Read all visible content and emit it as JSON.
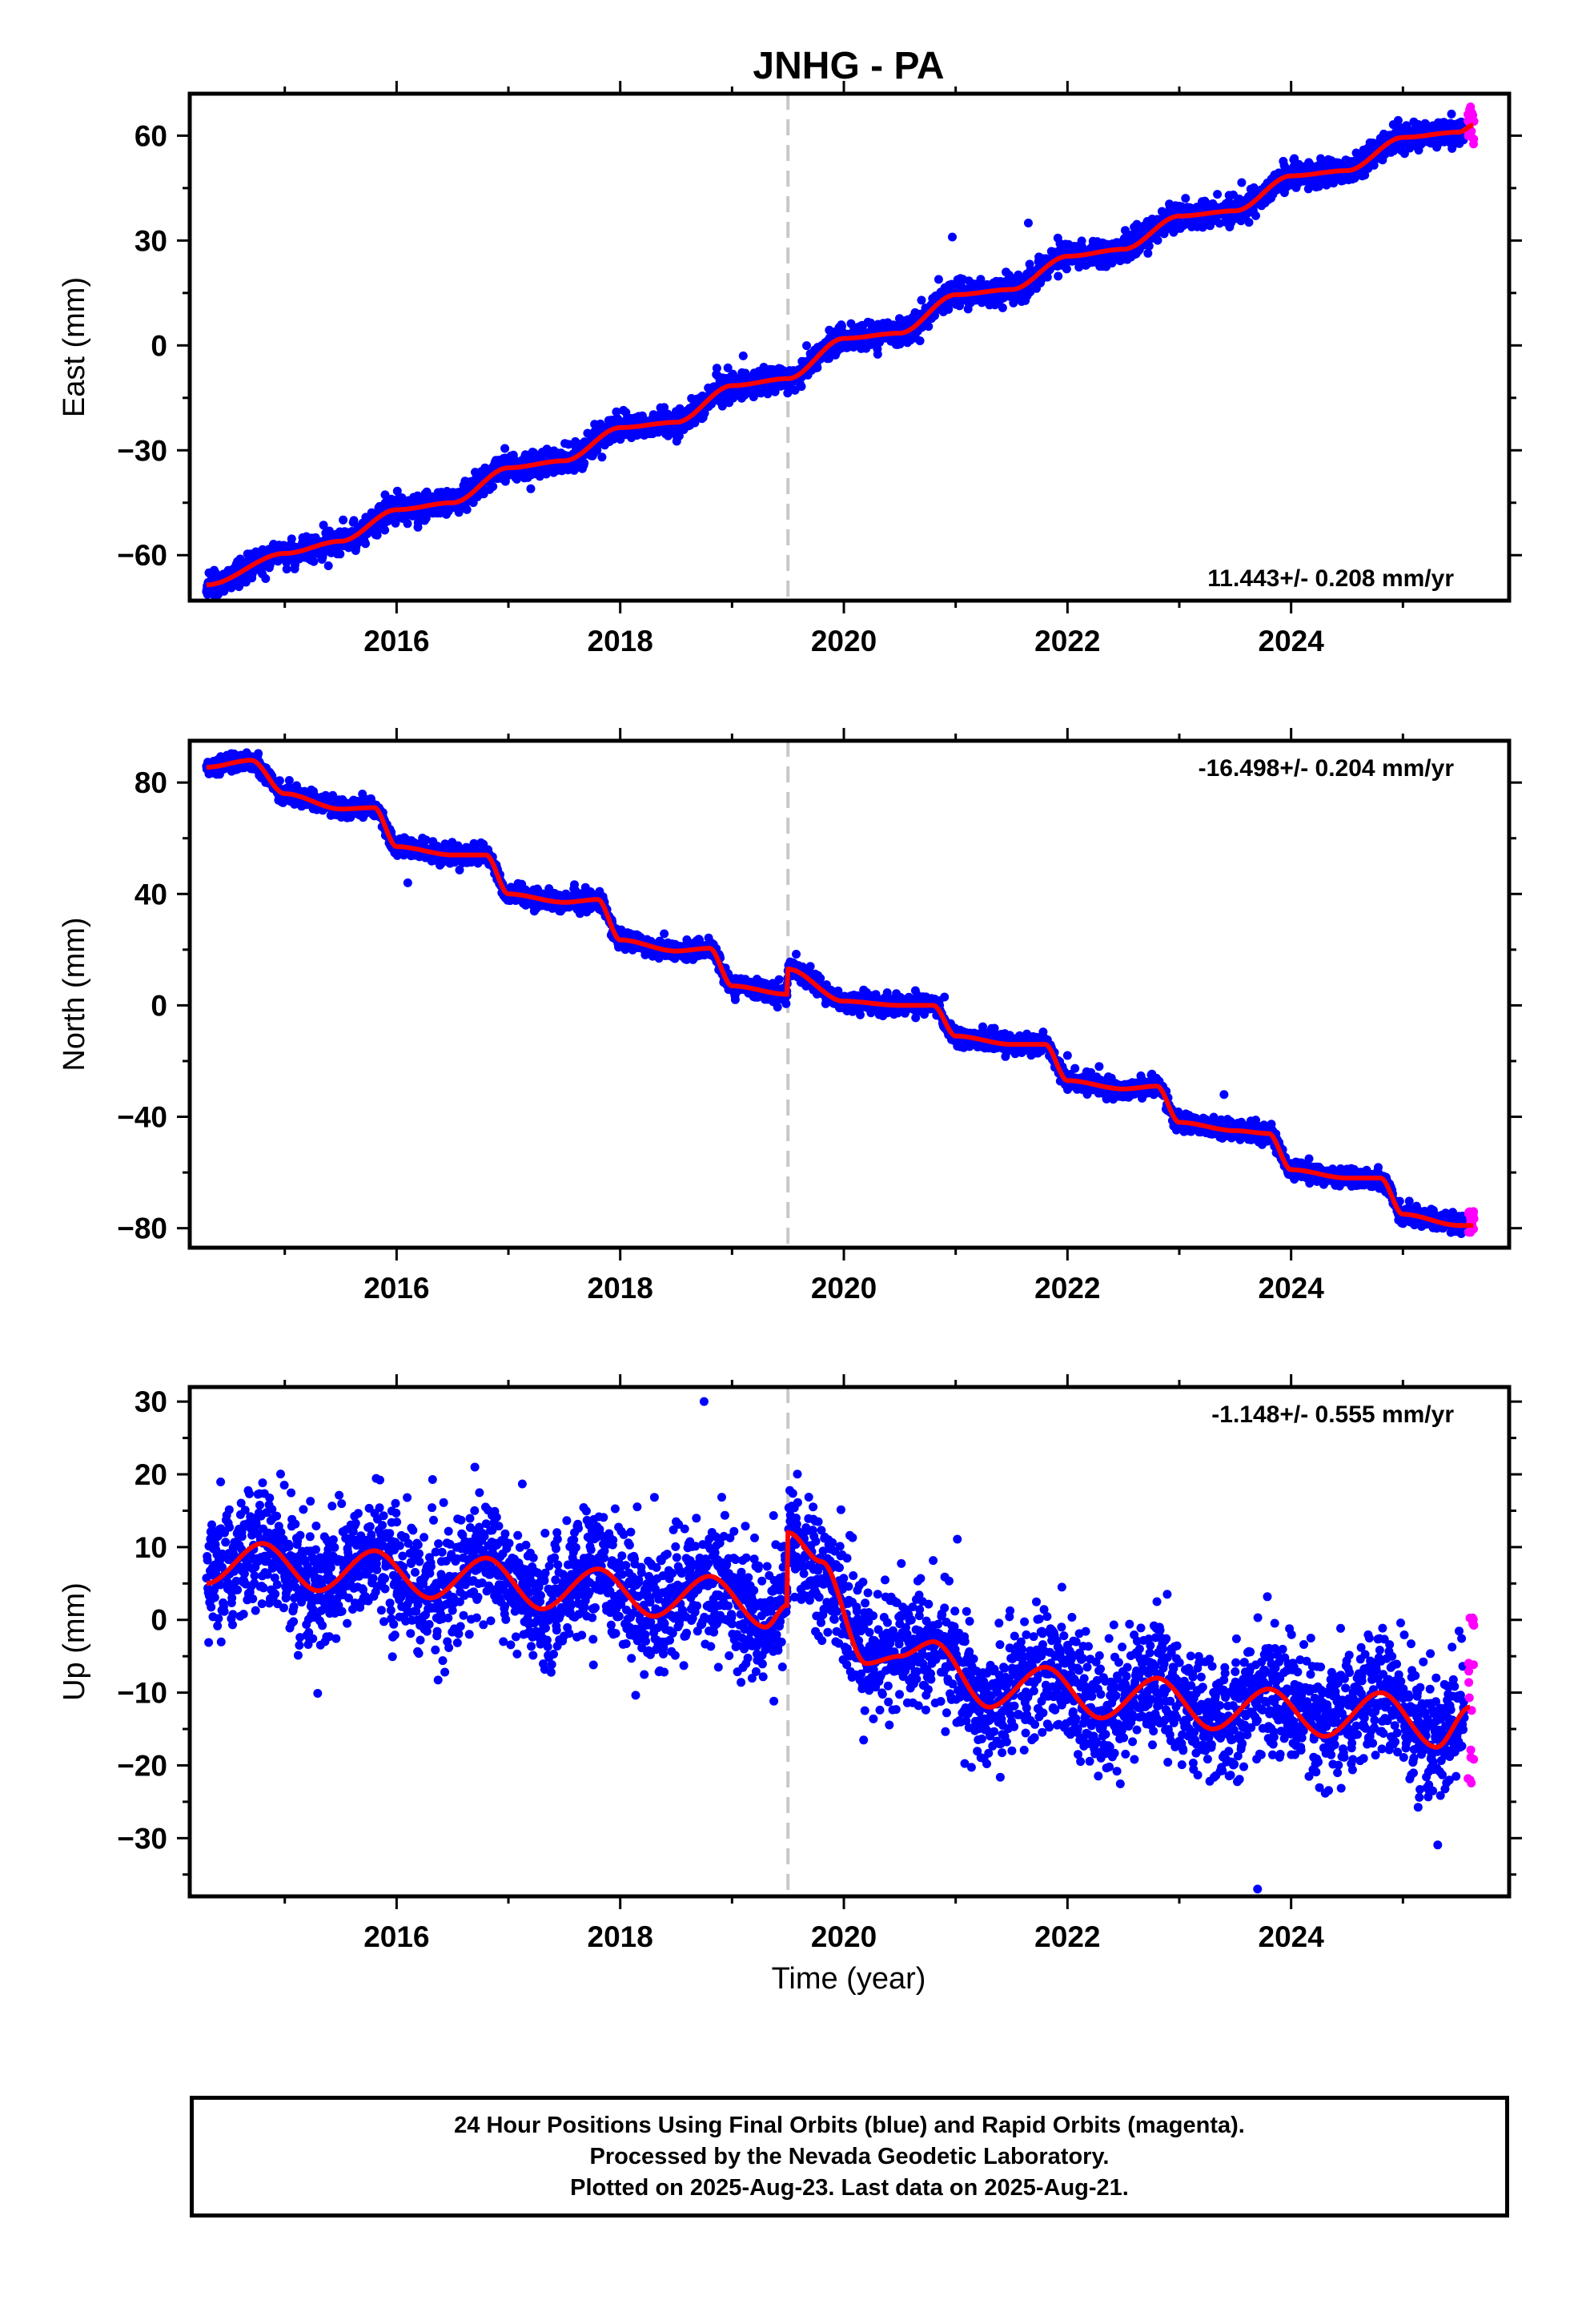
{
  "title": "JNHG - PA",
  "xlabel": "Time (year)",
  "footer": {
    "line1": "24 Hour Positions Using Final Orbits (blue) and Rapid Orbits (magenta).",
    "line2": "Processed by the Nevada Geodetic Laboratory.",
    "line3": "Plotted on 2025-Aug-23. Last data on 2025-Aug-21."
  },
  "colors": {
    "final": "#0000ff",
    "rapid": "#ff00ff",
    "model": "#ff0000",
    "break": "#c8c8c8"
  },
  "chart_data": [
    {
      "type": "scatter",
      "ylabel": "East (mm)",
      "rate": "11.443+/- 0.208 mm/yr",
      "rate_position": "bottom-right",
      "xlim": [
        2014.15,
        2025.95
      ],
      "ylim": [
        -73,
        72
      ],
      "xticks": [
        2016,
        2018,
        2020,
        2022,
        2024
      ],
      "yticks": [
        -60,
        -30,
        0,
        30,
        60
      ],
      "break_x": 2019.5,
      "trend_points": [
        [
          2014.3,
          -68.5
        ],
        [
          2015.0,
          -59.5
        ],
        [
          2015.5,
          -56
        ],
        [
          2016.0,
          -47
        ],
        [
          2016.5,
          -45
        ],
        [
          2017.0,
          -35
        ],
        [
          2017.5,
          -33
        ],
        [
          2018.0,
          -23.5
        ],
        [
          2018.5,
          -22
        ],
        [
          2019.0,
          -11.5
        ],
        [
          2019.5,
          -9.5
        ],
        [
          2020.0,
          2
        ],
        [
          2020.5,
          3.5
        ],
        [
          2021.0,
          14.5
        ],
        [
          2021.5,
          16
        ],
        [
          2022.0,
          25.5
        ],
        [
          2022.5,
          27.5
        ],
        [
          2023.0,
          37
        ],
        [
          2023.5,
          38.5
        ],
        [
          2024.0,
          48.5
        ],
        [
          2024.5,
          50
        ],
        [
          2025.0,
          59.5
        ],
        [
          2025.5,
          61
        ],
        [
          2025.63,
          63
        ]
      ],
      "outliers": [
        [
          2020.97,
          31
        ],
        [
          2021.65,
          35
        ],
        [
          2019.1,
          -3
        ],
        [
          2017.2,
          -41
        ]
      ],
      "rapid_range": [
        57,
        69
      ],
      "scatter_sd": 1.8,
      "annual_amp": 1.5,
      "final_end": 2025.55
    },
    {
      "type": "scatter",
      "ylabel": "North (mm)",
      "rate": "-16.498+/- 0.204 mm/yr",
      "rate_position": "top-right",
      "xlim": [
        2014.15,
        2025.95
      ],
      "ylim": [
        -87,
        95
      ],
      "xticks": [
        2016,
        2018,
        2020,
        2022,
        2024
      ],
      "yticks": [
        -80,
        -40,
        0,
        40,
        80
      ],
      "break_x": 2019.5,
      "trend_points": [
        [
          2014.3,
          85.5
        ],
        [
          2014.7,
          88
        ],
        [
          2015.0,
          76
        ],
        [
          2015.5,
          70.5
        ],
        [
          2015.8,
          71
        ],
        [
          2016.0,
          57
        ],
        [
          2016.5,
          54
        ],
        [
          2016.8,
          54
        ],
        [
          2017.0,
          40
        ],
        [
          2017.5,
          37
        ],
        [
          2017.8,
          38
        ],
        [
          2018.0,
          23.5
        ],
        [
          2018.5,
          19.5
        ],
        [
          2018.8,
          20.5
        ],
        [
          2019.0,
          7
        ],
        [
          2019.49,
          4
        ],
        [
          2019.5,
          13
        ],
        [
          2020.0,
          1.5
        ],
        [
          2020.5,
          0
        ],
        [
          2020.8,
          0
        ],
        [
          2021.0,
          -11
        ],
        [
          2021.5,
          -14
        ],
        [
          2021.8,
          -14
        ],
        [
          2022.0,
          -27
        ],
        [
          2022.5,
          -30
        ],
        [
          2022.8,
          -29
        ],
        [
          2023.0,
          -42
        ],
        [
          2023.5,
          -45
        ],
        [
          2023.8,
          -46
        ],
        [
          2024.0,
          -59
        ],
        [
          2024.5,
          -62
        ],
        [
          2024.8,
          -62
        ],
        [
          2025.0,
          -75
        ],
        [
          2025.5,
          -79
        ],
        [
          2025.63,
          -79
        ]
      ],
      "outliers": [
        [
          2016.1,
          44
        ],
        [
          2020.9,
          3
        ],
        [
          2022.0,
          -18
        ],
        [
          2023.4,
          -32
        ],
        [
          2019.7,
          14
        ]
      ],
      "rapid_range": [
        -82,
        -74
      ],
      "scatter_sd": 1.6,
      "annual_amp": 0,
      "final_end": 2025.55
    },
    {
      "type": "scatter",
      "ylabel": "Up (mm)",
      "rate": "-1.148+/- 0.555 mm/yr",
      "rate_position": "top-right",
      "xlim": [
        2014.15,
        2025.95
      ],
      "ylim": [
        -38,
        32
      ],
      "xticks": [
        2016,
        2018,
        2020,
        2022,
        2024
      ],
      "yticks": [
        -30,
        -20,
        -10,
        0,
        10,
        20,
        30
      ],
      "break_x": 2019.5,
      "trend_points": [
        [
          2014.3,
          5
        ],
        [
          2014.8,
          10.5
        ],
        [
          2015.3,
          4
        ],
        [
          2015.8,
          9.5
        ],
        [
          2016.3,
          3
        ],
        [
          2016.8,
          8.5
        ],
        [
          2017.3,
          1.5
        ],
        [
          2017.8,
          7
        ],
        [
          2018.3,
          0.5
        ],
        [
          2018.8,
          6
        ],
        [
          2019.3,
          -1
        ],
        [
          2019.49,
          2
        ],
        [
          2019.5,
          12
        ],
        [
          2019.8,
          8
        ],
        [
          2020.2,
          -6
        ],
        [
          2020.5,
          -5
        ],
        [
          2020.8,
          -3
        ],
        [
          2021.3,
          -12
        ],
        [
          2021.8,
          -6.5
        ],
        [
          2022.3,
          -13.5
        ],
        [
          2022.8,
          -8
        ],
        [
          2023.3,
          -15
        ],
        [
          2023.8,
          -9.5
        ],
        [
          2024.3,
          -16
        ],
        [
          2024.8,
          -10
        ],
        [
          2025.3,
          -17.5
        ],
        [
          2025.6,
          -12
        ]
      ],
      "outliers": [
        [
          2018.75,
          30
        ],
        [
          2023.7,
          -37
        ],
        [
          2021.95,
          4.5
        ],
        [
          2022.8,
          2.5
        ],
        [
          2016.7,
          21
        ]
      ],
      "rapid_range": [
        -23,
        0.5
      ],
      "scatter_sd": 4.2,
      "annual_amp": 0,
      "segments": [
        [
          2014.3,
          2020.7,
          5
        ],
        [
          2020.7,
          2025.55,
          -10
        ]
      ],
      "final_end": 2025.55
    }
  ]
}
